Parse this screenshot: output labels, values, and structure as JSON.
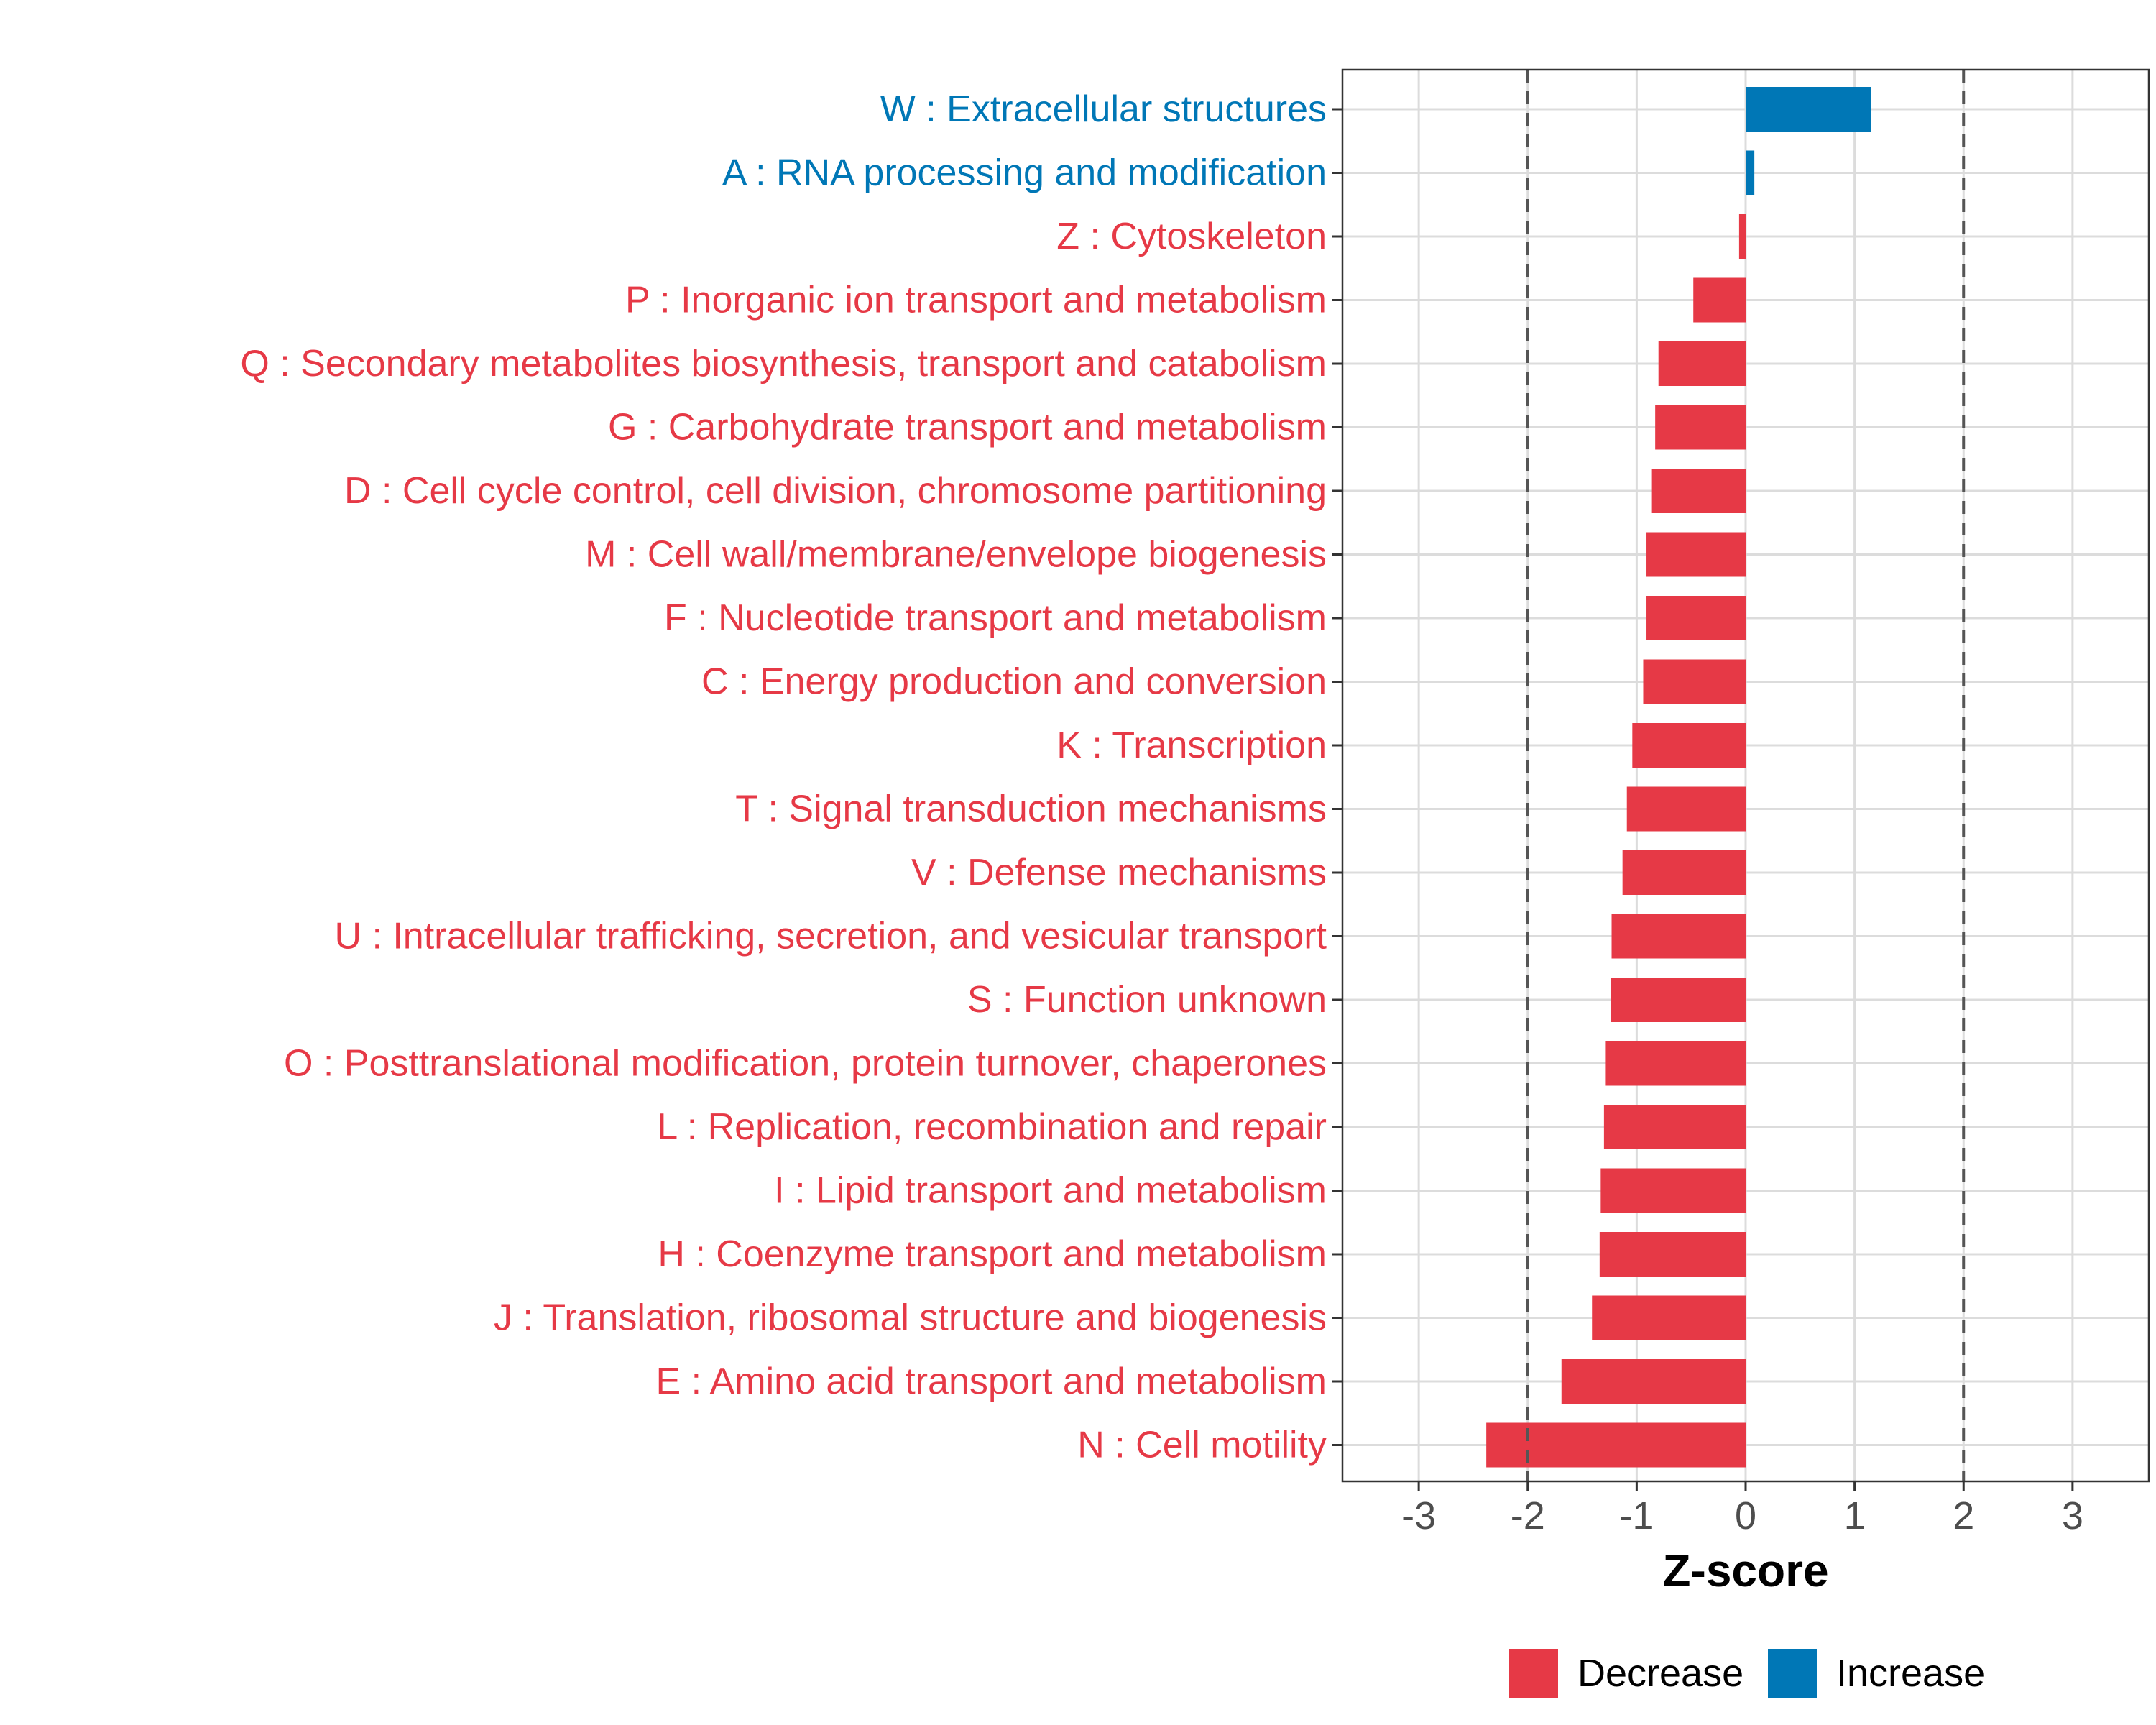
{
  "chart_data": {
    "type": "bar",
    "orientation": "horizontal",
    "xlabel": "Z-score",
    "xlim": [
      -3.7,
      3.7
    ],
    "xticks": [
      -3,
      -2,
      -1,
      0,
      1,
      2,
      3
    ],
    "xtick_labels": [
      "-3",
      "-2",
      "-1",
      "0",
      "1",
      "2",
      "3"
    ],
    "reference_lines": [
      -2,
      2
    ],
    "grid": true,
    "legend_position": "bottom",
    "colors": {
      "Decrease": "#E63946",
      "Increase": "#0077B6"
    },
    "legend": [
      {
        "name": "Decrease",
        "color": "#E63946"
      },
      {
        "name": "Increase",
        "color": "#0077B6"
      }
    ],
    "categories": [
      "W : Extracellular structures",
      "A : RNA processing and modification",
      "Z : Cytoskeleton",
      "P : Inorganic ion transport and metabolism",
      "Q : Secondary metabolites biosynthesis, transport and catabolism",
      "G : Carbohydrate transport and metabolism",
      "D : Cell cycle control, cell division, chromosome partitioning",
      "M : Cell wall/membrane/envelope biogenesis",
      "F : Nucleotide transport and metabolism",
      "C : Energy production and conversion",
      "K : Transcription",
      "T : Signal transduction mechanisms",
      "V : Defense mechanisms",
      "U : Intracellular trafficking, secretion, and vesicular transport",
      "S : Function unknown",
      "O : Posttranslational modification, protein turnover, chaperones",
      "L : Replication, recombination and repair",
      "I : Lipid transport and metabolism",
      "H : Coenzyme transport and metabolism",
      "J : Translation, ribosomal structure and biogenesis",
      "E : Amino acid transport and metabolism",
      "N : Cell motility"
    ],
    "values": [
      1.15,
      0.08,
      -0.06,
      -0.48,
      -0.8,
      -0.83,
      -0.86,
      -0.91,
      -0.91,
      -0.94,
      -1.04,
      -1.09,
      -1.13,
      -1.23,
      -1.24,
      -1.29,
      -1.3,
      -1.33,
      -1.34,
      -1.41,
      -1.69,
      -2.38
    ],
    "direction": [
      "Increase",
      "Increase",
      "Decrease",
      "Decrease",
      "Decrease",
      "Decrease",
      "Decrease",
      "Decrease",
      "Decrease",
      "Decrease",
      "Decrease",
      "Decrease",
      "Decrease",
      "Decrease",
      "Decrease",
      "Decrease",
      "Decrease",
      "Decrease",
      "Decrease",
      "Decrease",
      "Decrease",
      "Decrease"
    ]
  }
}
